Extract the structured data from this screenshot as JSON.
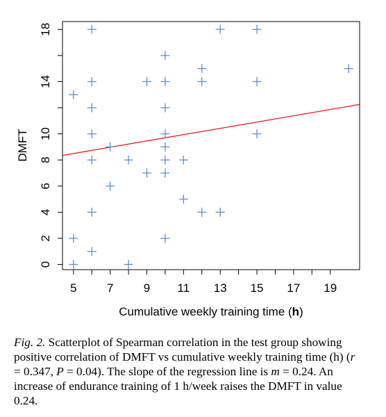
{
  "chart_data": {
    "type": "scatter",
    "xlabel_prefix": "Cumulative weekly training time (",
    "xlabel_unit": "h",
    "xlabel_suffix": ")",
    "ylabel": "DMFT",
    "xlim": [
      4.4,
      20.6
    ],
    "ylim": [
      -0.4,
      18.6
    ],
    "xticks": [
      5,
      6,
      7,
      8,
      9,
      10,
      11,
      12,
      13,
      14,
      15,
      16,
      17,
      18,
      19
    ],
    "xtick_labels": [
      "5",
      "7",
      "9",
      "11",
      "13",
      "15",
      "17",
      "19"
    ],
    "yticks": [
      0,
      2,
      4,
      6,
      8,
      10,
      14,
      18
    ],
    "yticks_minor": [
      12,
      16
    ],
    "points": [
      [
        5,
        0
      ],
      [
        5,
        2
      ],
      [
        5,
        13
      ],
      [
        6,
        1
      ],
      [
        6,
        4
      ],
      [
        6,
        8
      ],
      [
        6,
        10
      ],
      [
        6,
        12
      ],
      [
        6,
        14
      ],
      [
        6,
        18
      ],
      [
        7,
        6
      ],
      [
        7,
        9
      ],
      [
        8,
        0
      ],
      [
        8,
        8
      ],
      [
        9,
        7
      ],
      [
        9,
        14
      ],
      [
        10,
        2
      ],
      [
        10,
        7
      ],
      [
        10,
        8
      ],
      [
        10,
        9
      ],
      [
        10,
        10
      ],
      [
        10,
        12
      ],
      [
        10,
        14
      ],
      [
        10,
        16
      ],
      [
        11,
        5
      ],
      [
        11,
        8
      ],
      [
        12,
        4
      ],
      [
        12,
        14
      ],
      [
        12,
        15
      ],
      [
        13,
        4
      ],
      [
        13,
        18
      ],
      [
        15,
        10
      ],
      [
        15,
        14
      ],
      [
        15,
        18
      ],
      [
        20,
        15
      ]
    ],
    "regression": {
      "x": [
        4.4,
        20.6
      ],
      "y": [
        8.35,
        12.25
      ]
    },
    "point_color": "#5b8fd6",
    "line_color": "#e8181e",
    "grid": false
  },
  "caption": {
    "lead": "Fig. 2.",
    "part1": " Scatterplot of Spearman correlation in the test group showing positive correlation of DMFT vs cumulative weekly training time (h) (",
    "r_sym": "r",
    "part2": " = 0.347, ",
    "p_sym": "P",
    "part3": " = 0.04). The slope of the regression line is ",
    "m_sym": "m",
    "part4": " = 0.24. An increase of endurance training of 1 h/week raises the DMFT in value 0.24."
  }
}
